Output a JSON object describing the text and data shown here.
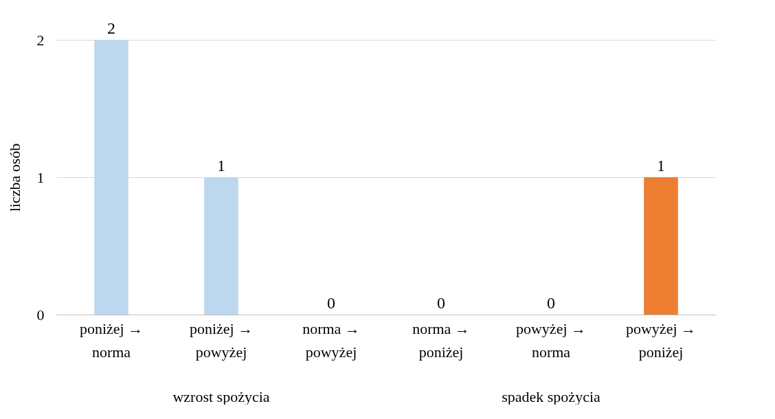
{
  "chart_data": {
    "type": "bar",
    "ylabel": "liczba osób",
    "categories": [
      "poniżej →\nnorma",
      "poniżej →\npowyżej",
      "norma →\npowyżej",
      "norma →\nponiżej",
      "powyżej →\nnorma",
      "powyżej →\nponiżej"
    ],
    "values": [
      2,
      1,
      0,
      0,
      0,
      1
    ],
    "colors": [
      "#bdd7ee",
      "#bdd7ee",
      "#bdd7ee",
      "#bdd7ee",
      "#bdd7ee",
      "#ed7d31"
    ],
    "ylim": [
      0,
      2
    ],
    "yticks": [
      0,
      1,
      2
    ],
    "grid": "y",
    "data_labels": true,
    "annotations": [
      "wzrost spożycia",
      "spadek spożycia"
    ]
  }
}
